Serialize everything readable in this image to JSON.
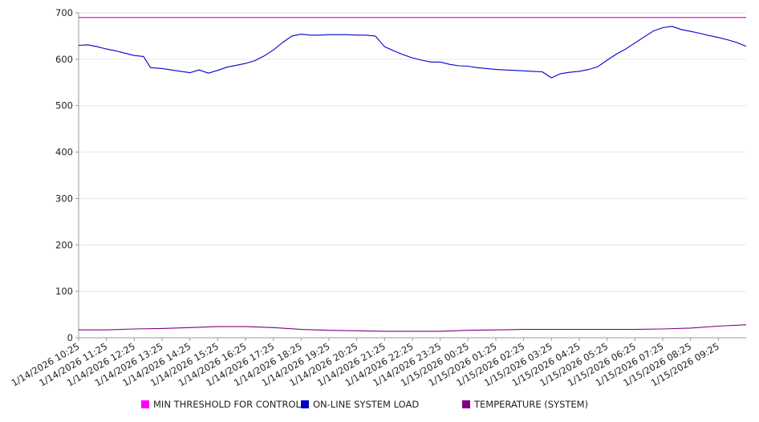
{
  "chart_data": {
    "type": "line",
    "title": "",
    "xlabel": "",
    "ylabel": "",
    "ylim": [
      0,
      700
    ],
    "yticks": [
      0,
      100,
      200,
      300,
      400,
      500,
      600,
      700
    ],
    "x_tick_labels": [
      "1/14/2026 10:25",
      "1/14/2026 11:25",
      "1/14/2026 12:25",
      "1/14/2026 13:25",
      "1/14/2026 14:25",
      "1/14/2026 15:25",
      "1/14/2026 16:25",
      "1/14/2026 17:25",
      "1/14/2026 18:25",
      "1/14/2026 19:25",
      "1/14/2026 20:25",
      "1/14/2026 21:25",
      "1/14/2026 22:25",
      "1/14/2026 23:25",
      "1/15/2026 00:25",
      "1/15/2026 01:25",
      "1/15/2026 02:25",
      "1/15/2026 03:25",
      "1/15/2026 04:25",
      "1/15/2026 05:25",
      "1/15/2026 06:25",
      "1/15/2026 07:25",
      "1/15/2026 08:25",
      "1/15/2026 09:25"
    ],
    "x_start": "1/14/2026 10:25",
    "x_end": "1/15/2026 10:25",
    "grid": "horizontal",
    "legend_position": "bottom",
    "series": [
      {
        "name": "MIN THRESHOLD FOR CONTROL",
        "color": "#cc00cc",
        "x": [
          "1/14/2026 10:25",
          "1/15/2026 10:25"
        ],
        "values": [
          690,
          690
        ]
      },
      {
        "name": "ON-LINE SYSTEM LOAD",
        "color": "#0000cc",
        "x": [
          "1/14/2026 10:25",
          "1/14/2026 10:45",
          "1/14/2026 11:05",
          "1/14/2026 11:25",
          "1/14/2026 11:45",
          "1/14/2026 12:05",
          "1/14/2026 12:25",
          "1/14/2026 12:45",
          "1/14/2026 13:00",
          "1/14/2026 13:25",
          "1/14/2026 13:45",
          "1/14/2026 14:05",
          "1/14/2026 14:25",
          "1/14/2026 14:45",
          "1/14/2026 15:05",
          "1/14/2026 15:25",
          "1/14/2026 15:45",
          "1/14/2026 16:05",
          "1/14/2026 16:25",
          "1/14/2026 16:45",
          "1/14/2026 17:05",
          "1/14/2026 17:25",
          "1/14/2026 17:45",
          "1/14/2026 18:05",
          "1/14/2026 18:25",
          "1/14/2026 18:45",
          "1/14/2026 19:05",
          "1/14/2026 19:25",
          "1/14/2026 19:45",
          "1/14/2026 20:05",
          "1/14/2026 20:25",
          "1/14/2026 20:45",
          "1/14/2026 21:05",
          "1/14/2026 21:25",
          "1/14/2026 21:45",
          "1/14/2026 22:05",
          "1/14/2026 22:25",
          "1/14/2026 22:45",
          "1/14/2026 23:05",
          "1/14/2026 23:25",
          "1/14/2026 23:45",
          "1/15/2026 00:05",
          "1/15/2026 00:25",
          "1/15/2026 00:45",
          "1/15/2026 01:05",
          "1/15/2026 01:25",
          "1/15/2026 01:45",
          "1/15/2026 02:05",
          "1/15/2026 02:25",
          "1/15/2026 02:45",
          "1/15/2026 03:05",
          "1/15/2026 03:25",
          "1/15/2026 03:45",
          "1/15/2026 04:05",
          "1/15/2026 04:25",
          "1/15/2026 04:45",
          "1/15/2026 05:05",
          "1/15/2026 05:25",
          "1/15/2026 05:45",
          "1/15/2026 06:05",
          "1/15/2026 06:25",
          "1/15/2026 06:45",
          "1/15/2026 07:05",
          "1/15/2026 07:25",
          "1/15/2026 07:45",
          "1/15/2026 08:05",
          "1/15/2026 08:25",
          "1/15/2026 08:45",
          "1/15/2026 09:05",
          "1/15/2026 09:25",
          "1/15/2026 09:45",
          "1/15/2026 10:05",
          "1/15/2026 10:25"
        ],
        "values": [
          630,
          631,
          627,
          622,
          618,
          613,
          608,
          606,
          582,
          580,
          577,
          574,
          571,
          577,
          570,
          576,
          583,
          587,
          591,
          597,
          607,
          620,
          636,
          650,
          654,
          652,
          652,
          653,
          653,
          653,
          652,
          652,
          650,
          627,
          618,
          610,
          603,
          598,
          594,
          594,
          589,
          586,
          585,
          582,
          580,
          578,
          577,
          576,
          575,
          574,
          573,
          560,
          569,
          572,
          574,
          578,
          584,
          598,
          611,
          622,
          635,
          648,
          661,
          668,
          671,
          664,
          660,
          656,
          651,
          647,
          642,
          636,
          628
        ]
      },
      {
        "name": "TEMPERATURE (SYSTEM)",
        "color": "#800080",
        "x": [
          "1/14/2026 10:25",
          "1/14/2026 11:25",
          "1/14/2026 12:25",
          "1/14/2026 13:25",
          "1/14/2026 14:25",
          "1/14/2026 15:25",
          "1/14/2026 16:25",
          "1/14/2026 17:25",
          "1/14/2026 18:25",
          "1/14/2026 19:25",
          "1/14/2026 20:25",
          "1/14/2026 21:25",
          "1/14/2026 22:25",
          "1/14/2026 23:25",
          "1/15/2026 00:25",
          "1/15/2026 01:25",
          "1/15/2026 02:25",
          "1/15/2026 03:25",
          "1/15/2026 04:25",
          "1/15/2026 05:25",
          "1/15/2026 06:25",
          "1/15/2026 07:25",
          "1/15/2026 08:25",
          "1/15/2026 09:25",
          "1/15/2026 10:25"
        ],
        "values": [
          17,
          17,
          19,
          20,
          22,
          24,
          24,
          22,
          18,
          16,
          15,
          14,
          14,
          14,
          16,
          17,
          18,
          18,
          18,
          18,
          18,
          19,
          21,
          25,
          28
        ]
      }
    ]
  }
}
